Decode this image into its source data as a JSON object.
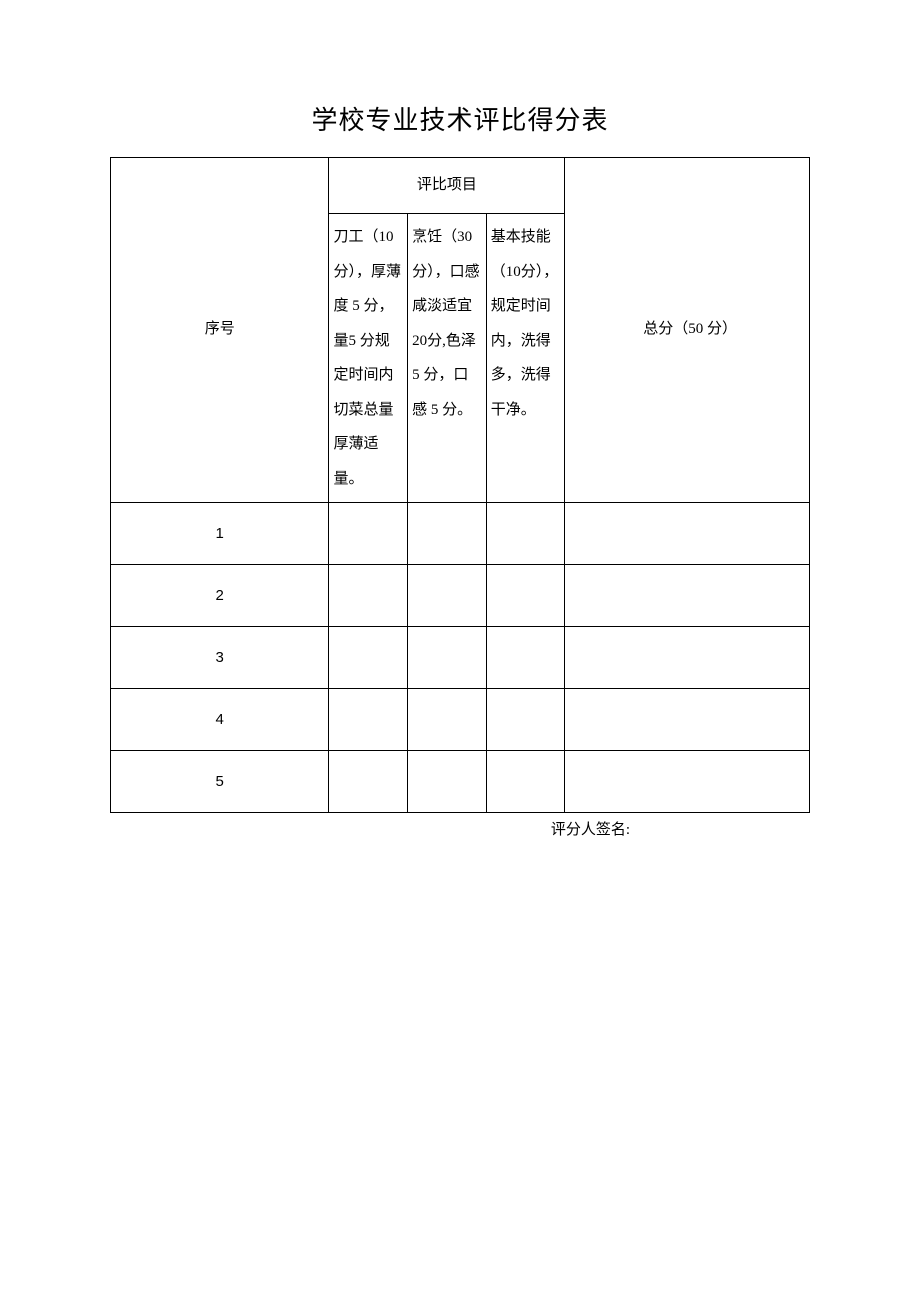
{
  "title": "学校专业技术评比得分表",
  "table": {
    "header": {
      "seq": "序号",
      "criteria_group": "评比项目",
      "criteria1": "刀工（10 分），厚薄度 5 分，量5 分规定时间内切菜总量厚薄适量。",
      "criteria2": "烹饪（30 分），口感咸淡适宜 20分,色泽 5 分，口感 5 分。",
      "criteria3": "基本技能（10分），规定时间内，洗得多，洗得干净。",
      "total": "总分（50 分）"
    },
    "rows": [
      {
        "seq": "1",
        "c1": "",
        "c2": "",
        "c3": "",
        "total": ""
      },
      {
        "seq": "2",
        "c1": "",
        "c2": "",
        "c3": "",
        "total": ""
      },
      {
        "seq": "3",
        "c1": "",
        "c2": "",
        "c3": "",
        "total": ""
      },
      {
        "seq": "4",
        "c1": "",
        "c2": "",
        "c3": "",
        "total": ""
      },
      {
        "seq": "5",
        "c1": "",
        "c2": "",
        "c3": "",
        "total": ""
      }
    ]
  },
  "footer": "评分人签名:"
}
